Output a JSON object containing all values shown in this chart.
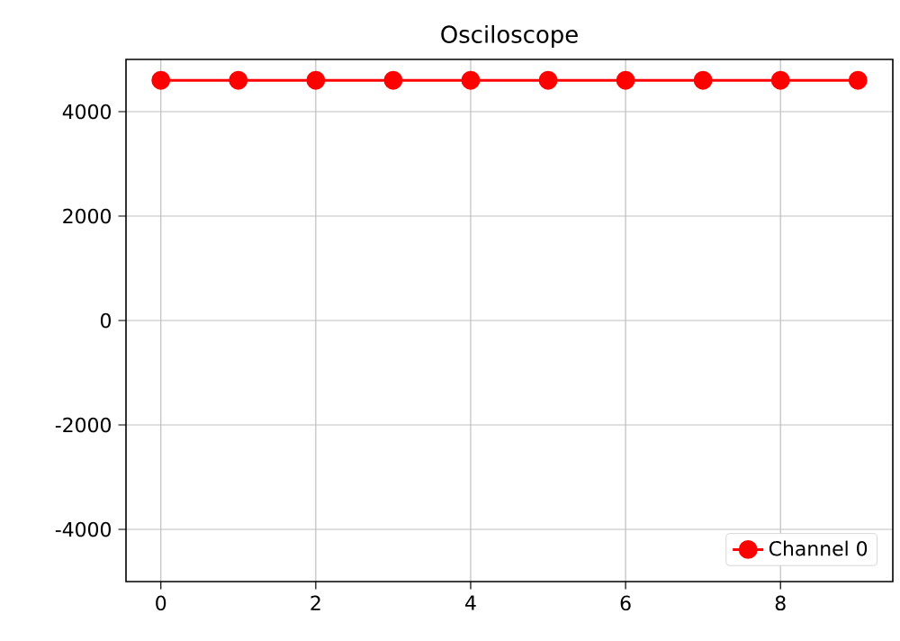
{
  "chart_data": {
    "type": "line",
    "title": "Osciloscope",
    "x": [
      0,
      1,
      2,
      3,
      4,
      5,
      6,
      7,
      8,
      9
    ],
    "series": [
      {
        "name": "Channel 0",
        "color": "#ff0000",
        "values": [
          4600,
          4600,
          4600,
          4600,
          4600,
          4600,
          4600,
          4600,
          4600,
          4600
        ]
      }
    ],
    "xlim": [
      -0.45,
      9.45
    ],
    "ylim": [
      -5000,
      5000
    ],
    "xticks": [
      0,
      2,
      4,
      6,
      8
    ],
    "yticks": [
      -4000,
      -2000,
      0,
      2000,
      4000
    ],
    "grid": true,
    "legend": "bottom right",
    "marker": "circle",
    "line_style": "solid"
  }
}
